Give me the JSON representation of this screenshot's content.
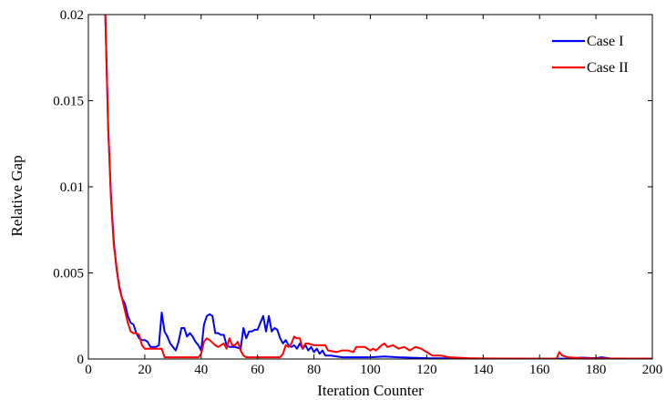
{
  "chart_data": {
    "type": "line",
    "xlabel": "Iteration Counter",
    "ylabel": "Relative Gap",
    "xlim": [
      0,
      200
    ],
    "ylim": [
      0,
      0.02
    ],
    "xticks": [
      0,
      20,
      40,
      60,
      80,
      100,
      120,
      140,
      160,
      180,
      200
    ],
    "yticks": [
      0,
      0.005,
      0.01,
      0.015,
      0.02
    ],
    "ytick_labels": [
      "0",
      "0.005",
      "0.01",
      "0.015",
      "0.02"
    ],
    "xtick_labels": [
      "0",
      "20",
      "40",
      "60",
      "80",
      "100",
      "120",
      "140",
      "160",
      "180",
      "200"
    ],
    "grid": false,
    "legend_position": "top-right",
    "series": [
      {
        "name": "Case I",
        "color": "#0000ff",
        "points": [
          [
            6,
            0.02
          ],
          [
            7,
            0.0135
          ],
          [
            8,
            0.0095
          ],
          [
            9,
            0.0068
          ],
          [
            10,
            0.0052
          ],
          [
            11,
            0.0042
          ],
          [
            12,
            0.0035
          ],
          [
            13,
            0.0032
          ],
          [
            14,
            0.0025
          ],
          [
            15,
            0.0021
          ],
          [
            16,
            0.002
          ],
          [
            17,
            0.0015
          ],
          [
            18,
            0.0012
          ],
          [
            19,
            0.0011
          ],
          [
            20,
            0.0011
          ],
          [
            21,
            0.001
          ],
          [
            22,
            0.0007
          ],
          [
            24,
            0.0007
          ],
          [
            25,
            0.0008
          ],
          [
            26,
            0.0027
          ],
          [
            27,
            0.0016
          ],
          [
            28,
            0.0013
          ],
          [
            29,
            0.0009
          ],
          [
            30,
            0.0007
          ],
          [
            31,
            0.0005
          ],
          [
            32,
            0.001
          ],
          [
            33,
            0.0018
          ],
          [
            34,
            0.0018
          ],
          [
            35,
            0.0013
          ],
          [
            36,
            0.0015
          ],
          [
            37,
            0.0013
          ],
          [
            38,
            0.001
          ],
          [
            39,
            0.0008
          ],
          [
            40,
            0.0005
          ],
          [
            41,
            0.002
          ],
          [
            42,
            0.0025
          ],
          [
            43,
            0.0026
          ],
          [
            44,
            0.0025
          ],
          [
            45,
            0.0015
          ],
          [
            46,
            0.0015
          ],
          [
            47,
            0.0014
          ],
          [
            48,
            0.0014
          ],
          [
            49,
            0.0008
          ],
          [
            50,
            0.0007
          ],
          [
            52,
            0.0007
          ],
          [
            54,
            0.0006
          ],
          [
            55,
            0.0018
          ],
          [
            56,
            0.0012
          ],
          [
            57,
            0.0016
          ],
          [
            58,
            0.0016
          ],
          [
            59,
            0.0017
          ],
          [
            60,
            0.0017
          ],
          [
            61,
            0.0021
          ],
          [
            62,
            0.0025
          ],
          [
            63,
            0.0016
          ],
          [
            64,
            0.0025
          ],
          [
            65,
            0.0016
          ],
          [
            66,
            0.0018
          ],
          [
            67,
            0.0017
          ],
          [
            68,
            0.0012
          ],
          [
            69,
            0.0009
          ],
          [
            70,
            0.0011
          ],
          [
            71,
            0.0008
          ],
          [
            72,
            0.0007
          ],
          [
            73,
            0.0008
          ],
          [
            74,
            0.0006
          ],
          [
            75,
            0.0009
          ],
          [
            76,
            0.0006
          ],
          [
            77,
            0.0008
          ],
          [
            78,
            0.0005
          ],
          [
            79,
            0.0007
          ],
          [
            80,
            0.0004
          ],
          [
            81,
            0.0006
          ],
          [
            82,
            0.0003
          ],
          [
            83,
            0.0005
          ],
          [
            84,
            0.0002
          ],
          [
            86,
            0.0002
          ],
          [
            90,
            0.0001
          ],
          [
            100,
            0.0001
          ],
          [
            105,
            0.00015
          ],
          [
            110,
            0.0001
          ],
          [
            120,
            5e-05
          ],
          [
            130,
            3e-05
          ],
          [
            140,
            2e-05
          ],
          [
            160,
            2e-05
          ],
          [
            170,
            2e-05
          ],
          [
            175,
            8e-05
          ],
          [
            180,
            5e-05
          ],
          [
            182,
            0.0001
          ],
          [
            185,
            3e-05
          ],
          [
            200,
            2e-05
          ]
        ]
      },
      {
        "name": "Case II",
        "color": "#ff0000",
        "points": [
          [
            6,
            0.02
          ],
          [
            7,
            0.0135
          ],
          [
            8,
            0.0093
          ],
          [
            9,
            0.0066
          ],
          [
            10,
            0.0053
          ],
          [
            11,
            0.0041
          ],
          [
            12,
            0.0035
          ],
          [
            13,
            0.0028
          ],
          [
            14,
            0.0021
          ],
          [
            15,
            0.0016
          ],
          [
            16,
            0.0015
          ],
          [
            17,
            0.0015
          ],
          [
            18,
            0.0014
          ],
          [
            19,
            0.0008
          ],
          [
            20,
            0.0006
          ],
          [
            24,
            0.0006
          ],
          [
            26,
            0.0006
          ],
          [
            27,
            0.0001
          ],
          [
            30,
            0.0001
          ],
          [
            35,
            0.0001
          ],
          [
            39,
            0.0001
          ],
          [
            40,
            0.0003
          ],
          [
            41,
            0.001
          ],
          [
            42,
            0.0012
          ],
          [
            43,
            0.0011
          ],
          [
            45,
            0.0008
          ],
          [
            46,
            0.0007
          ],
          [
            48,
            0.0009
          ],
          [
            49,
            0.0006
          ],
          [
            50,
            0.0012
          ],
          [
            51,
            0.0008
          ],
          [
            52,
            0.0008
          ],
          [
            53,
            0.001
          ],
          [
            54,
            0.0005
          ],
          [
            55,
            0.0002
          ],
          [
            56,
            0.0001
          ],
          [
            60,
            0.0001
          ],
          [
            68,
            0.0001
          ],
          [
            69,
            0.0003
          ],
          [
            70,
            0.0008
          ],
          [
            71,
            0.0007
          ],
          [
            72,
            0.0009
          ],
          [
            73,
            0.0013
          ],
          [
            74,
            0.0012
          ],
          [
            75,
            0.0012
          ],
          [
            76,
            0.0006
          ],
          [
            77,
            0.0009
          ],
          [
            78,
            0.0009
          ],
          [
            80,
            0.0008
          ],
          [
            84,
            0.0008
          ],
          [
            85,
            0.0005
          ],
          [
            88,
            0.0004
          ],
          [
            90,
            0.0005
          ],
          [
            92,
            0.0005
          ],
          [
            94,
            0.0004
          ],
          [
            95,
            0.0007
          ],
          [
            98,
            0.0007
          ],
          [
            100,
            0.0005
          ],
          [
            101,
            0.0006
          ],
          [
            102,
            0.0005
          ],
          [
            104,
            0.0008
          ],
          [
            105,
            0.0009
          ],
          [
            106,
            0.0007
          ],
          [
            108,
            0.0008
          ],
          [
            110,
            0.0006
          ],
          [
            112,
            0.0007
          ],
          [
            114,
            0.0005
          ],
          [
            116,
            0.0007
          ],
          [
            118,
            0.0006
          ],
          [
            120,
            0.0004
          ],
          [
            122,
            0.0002
          ],
          [
            125,
            0.0002
          ],
          [
            128,
            0.0001
          ],
          [
            135,
            5e-05
          ],
          [
            140,
            3e-05
          ],
          [
            160,
            2e-05
          ],
          [
            166,
            2e-05
          ],
          [
            167,
            0.0004
          ],
          [
            168,
            0.0002
          ],
          [
            170,
            0.0001
          ],
          [
            175,
            5e-05
          ],
          [
            180,
            3e-05
          ],
          [
            200,
            2e-05
          ]
        ]
      }
    ]
  }
}
